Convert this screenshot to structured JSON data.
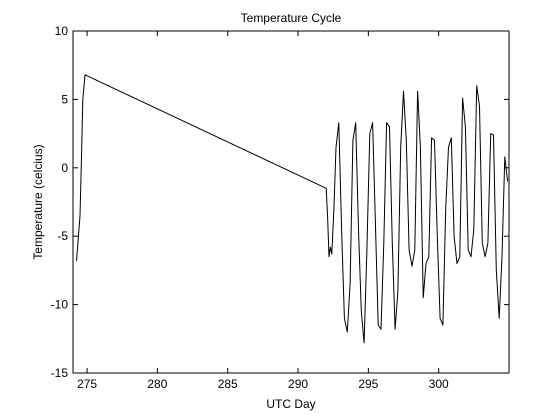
{
  "chart_data": {
    "type": "line",
    "title": "Temperature Cycle",
    "xlabel": "UTC Day",
    "ylabel": "Temperature (celcius)",
    "xlim": [
      274,
      305
    ],
    "ylim": [
      -15,
      10
    ],
    "x_ticks": [
      275,
      280,
      285,
      290,
      295,
      300
    ],
    "y_ticks": [
      -15,
      -10,
      -5,
      0,
      5,
      10
    ],
    "grid": false,
    "series": [
      {
        "color": "#000000",
        "x": [
          274.25,
          274.35,
          274.5,
          274.6,
          274.7,
          274.85,
          292.0,
          292.1,
          292.2,
          292.3,
          292.4,
          292.55,
          292.7,
          292.9,
          293.1,
          293.3,
          293.5,
          293.7,
          293.9,
          294.1,
          294.3,
          294.5,
          294.7,
          294.9,
          295.1,
          295.3,
          295.5,
          295.7,
          295.9,
          296.1,
          296.3,
          296.5,
          296.7,
          296.9,
          297.1,
          297.3,
          297.5,
          297.7,
          297.9,
          298.1,
          298.3,
          298.5,
          298.7,
          298.9,
          299.1,
          299.3,
          299.5,
          299.7,
          299.9,
          300.1,
          300.3,
          300.5,
          300.7,
          300.9,
          301.1,
          301.3,
          301.5,
          301.7,
          301.9,
          302.1,
          302.3,
          302.5,
          302.7,
          302.9,
          303.1,
          303.3,
          303.5,
          303.7,
          303.9,
          304.1,
          304.3,
          304.5,
          304.7,
          304.9
        ],
        "y": [
          -6.8,
          -5.5,
          -3.5,
          0.5,
          5.0,
          6.8,
          -1.5,
          -3.6,
          -6.5,
          -5.8,
          -6.3,
          -3.0,
          1.5,
          3.3,
          -4.5,
          -11.0,
          -12.0,
          -8.5,
          2.0,
          3.3,
          -4.5,
          -10.5,
          -12.8,
          -6.0,
          2.5,
          3.3,
          -4.0,
          -11.5,
          -11.8,
          -5.5,
          3.3,
          3.0,
          -5.5,
          -11.8,
          -9.0,
          1.5,
          5.6,
          2.0,
          -6.0,
          -7.2,
          -6.0,
          5.6,
          1.5,
          -9.5,
          -7.0,
          -6.5,
          2.2,
          2.0,
          -5.0,
          -11.0,
          -11.5,
          -3.0,
          1.5,
          2.2,
          -5.0,
          -7.0,
          -6.5,
          5.1,
          3.0,
          -6.0,
          -6.5,
          -4.5,
          6.0,
          4.5,
          -5.5,
          -6.5,
          -5.5,
          2.5,
          2.4,
          -7.5,
          -11.0,
          -6.5,
          0.8,
          -1.0
        ]
      }
    ]
  }
}
